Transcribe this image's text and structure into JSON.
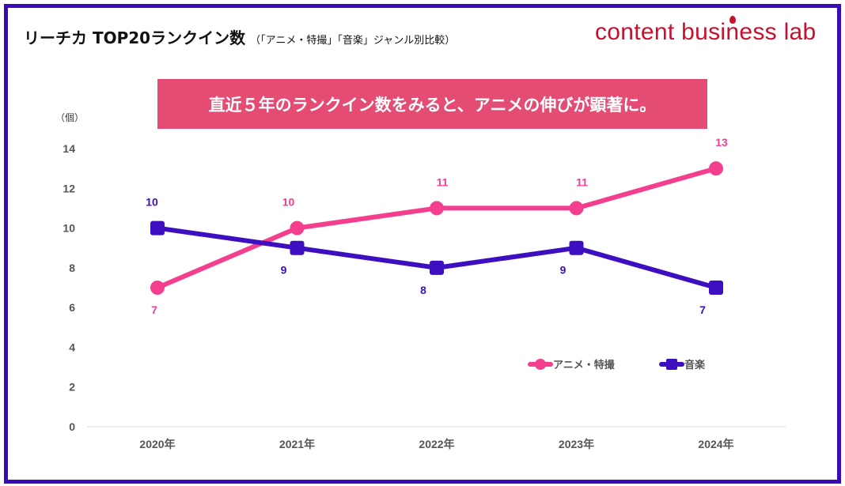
{
  "header": {
    "title": "リーチカ TOP20ランクイン数",
    "subtitle": "（「アニメ・特撮」「音楽」ジャンル別比較）",
    "logo_text": "content business lab"
  },
  "banner": "直近５年のランクイン数をみると、アニメの伸びが顕著に。",
  "colors": {
    "border": "#3a0ab8",
    "banner": "#e44c74",
    "logo": "#c8102e",
    "anime": "#f43f8e",
    "music": "#3d0fc0"
  },
  "chart_data": {
    "type": "line",
    "ylabel": "（個）",
    "categories": [
      "2020年",
      "2021年",
      "2022年",
      "2023年",
      "2024年"
    ],
    "ylim": [
      0,
      14
    ],
    "yticks": [
      0,
      2,
      4,
      6,
      8,
      10,
      12,
      14
    ],
    "grid": false,
    "legend": "bottom-right",
    "series": [
      {
        "name": "アニメ・特撮",
        "color": "#f43f8e",
        "marker": "circle",
        "values": [
          7,
          10,
          11,
          11,
          13
        ]
      },
      {
        "name": "音楽",
        "color": "#3d0fc0",
        "marker": "square",
        "values": [
          10,
          9,
          8,
          9,
          7
        ]
      }
    ]
  }
}
